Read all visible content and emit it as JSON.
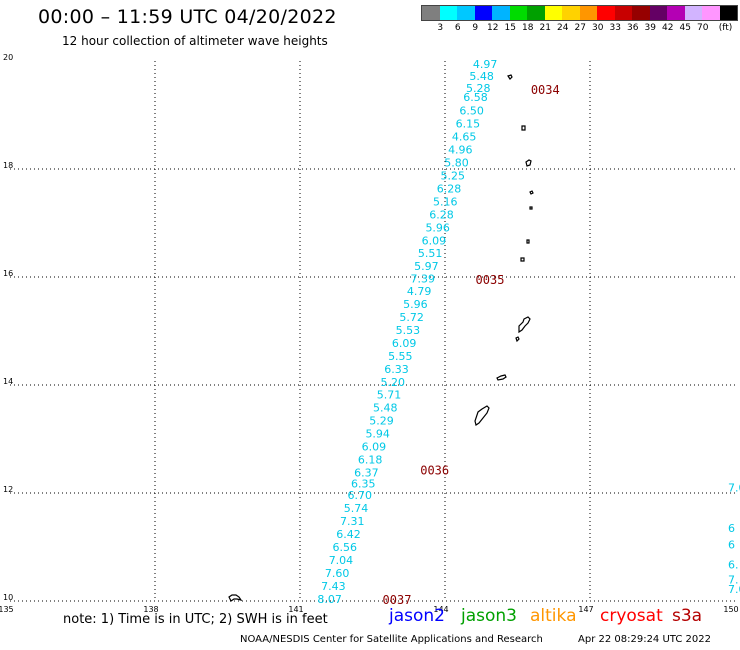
{
  "header": {
    "title": "00:00 – 11:59 UTC 04/20/2022",
    "subtitle": "12 hour collection of altimeter wave heights"
  },
  "colorbar": {
    "unit": "(ft)",
    "colors": [
      "#7f7f7f",
      "#00ffff",
      "#00c8ff",
      "#0000ff",
      "#00b4ff",
      "#00dc00",
      "#00a000",
      "#ffff00",
      "#ffd200",
      "#ff9600",
      "#ff0000",
      "#c80000",
      "#960000",
      "#640064",
      "#b400b4",
      "#d2b4ff",
      "#ff96ff",
      "#000000"
    ],
    "labels": [
      "3",
      "6",
      "9",
      "12",
      "15",
      "18",
      "21",
      "24",
      "27",
      "30",
      "33",
      "36",
      "39",
      "42",
      "45",
      "70"
    ]
  },
  "map": {
    "lon_ticks": [
      "135",
      "138",
      "141",
      "144",
      "147",
      "150"
    ],
    "lat_ticks": [
      "20",
      "18",
      "16",
      "14",
      "12",
      "10"
    ],
    "track_color": "#00c8e6",
    "wave_heights": [
      {
        "lat": 19.94,
        "swh": "4.97"
      },
      {
        "lat": 19.72,
        "swh": "5.48"
      },
      {
        "lat": 19.5,
        "swh": "5.28"
      },
      {
        "lat": 19.33,
        "swh": "6.58"
      },
      {
        "lat": 19.08,
        "swh": "6.50"
      },
      {
        "lat": 18.84,
        "swh": "6.15"
      },
      {
        "lat": 18.6,
        "swh": "4.65"
      },
      {
        "lat": 18.36,
        "swh": "4.96"
      },
      {
        "lat": 18.12,
        "swh": "5.80"
      },
      {
        "lat": 17.88,
        "swh": "5.25"
      },
      {
        "lat": 17.64,
        "swh": "6.28"
      },
      {
        "lat": 17.4,
        "swh": "5.16"
      },
      {
        "lat": 17.16,
        "swh": "6.28"
      },
      {
        "lat": 16.92,
        "swh": "5.96"
      },
      {
        "lat": 16.68,
        "swh": "6.09"
      },
      {
        "lat": 16.44,
        "swh": "5.51"
      },
      {
        "lat": 16.2,
        "swh": "5.97"
      },
      {
        "lat": 15.97,
        "swh": "7.39"
      },
      {
        "lat": 15.74,
        "swh": "4.79"
      },
      {
        "lat": 15.5,
        "swh": "5.96"
      },
      {
        "lat": 15.26,
        "swh": "5.72"
      },
      {
        "lat": 15.02,
        "swh": "5.53"
      },
      {
        "lat": 14.78,
        "swh": "6.09"
      },
      {
        "lat": 14.54,
        "swh": "5.55"
      },
      {
        "lat": 14.3,
        "swh": "6.33"
      },
      {
        "lat": 14.06,
        "swh": "5.20"
      },
      {
        "lat": 13.82,
        "swh": "5.71"
      },
      {
        "lat": 13.58,
        "swh": "5.48"
      },
      {
        "lat": 13.34,
        "swh": "5.29"
      },
      {
        "lat": 13.1,
        "swh": "5.94"
      },
      {
        "lat": 12.86,
        "swh": "6.09"
      },
      {
        "lat": 12.62,
        "swh": "6.18"
      },
      {
        "lat": 12.38,
        "swh": "6.37"
      },
      {
        "lat": 12.18,
        "swh": "6.35"
      },
      {
        "lat": 11.96,
        "swh": "6.70"
      },
      {
        "lat": 11.72,
        "swh": "5.74"
      },
      {
        "lat": 11.48,
        "swh": "7.31"
      },
      {
        "lat": 11.24,
        "swh": "6.42"
      },
      {
        "lat": 11.0,
        "swh": "6.56"
      },
      {
        "lat": 10.76,
        "swh": "7.04"
      },
      {
        "lat": 10.52,
        "swh": "7.60"
      },
      {
        "lat": 10.28,
        "swh": "7.43"
      },
      {
        "lat": 10.04,
        "swh": "8.07"
      }
    ],
    "edge_labels": [
      {
        "lat": 12.1,
        "swh": "7.0"
      },
      {
        "lat": 11.35,
        "swh": "6"
      },
      {
        "lat": 11.05,
        "swh": "6"
      },
      {
        "lat": 10.68,
        "swh": "6."
      },
      {
        "lat": 10.4,
        "swh": "7."
      },
      {
        "lat": 10.22,
        "swh": "7.0"
      }
    ],
    "time_labels": [
      {
        "lat": 19.46,
        "text": "0034"
      },
      {
        "lat": 15.94,
        "text": "0035"
      },
      {
        "lat": 12.42,
        "text": "0036"
      },
      {
        "lat": 10.02,
        "text": "0037"
      }
    ],
    "time_color": "#8b0000"
  },
  "footer": {
    "note": "note: 1) Time is in UTC; 2) SWH is in feet",
    "satellites": [
      {
        "name": "jason2",
        "color": "#0000ff"
      },
      {
        "name": "jason3",
        "color": "#00a000"
      },
      {
        "name": "altika",
        "color": "#ff9600"
      },
      {
        "name": "cryosat",
        "color": "#ff0000"
      },
      {
        "name": "s3a",
        "color": "#b40000"
      }
    ],
    "credit": "NOAA/NESDIS Center for Satellite Applications and Research",
    "timestamp": "Apr 22 08:29:24 UTC 2022"
  }
}
